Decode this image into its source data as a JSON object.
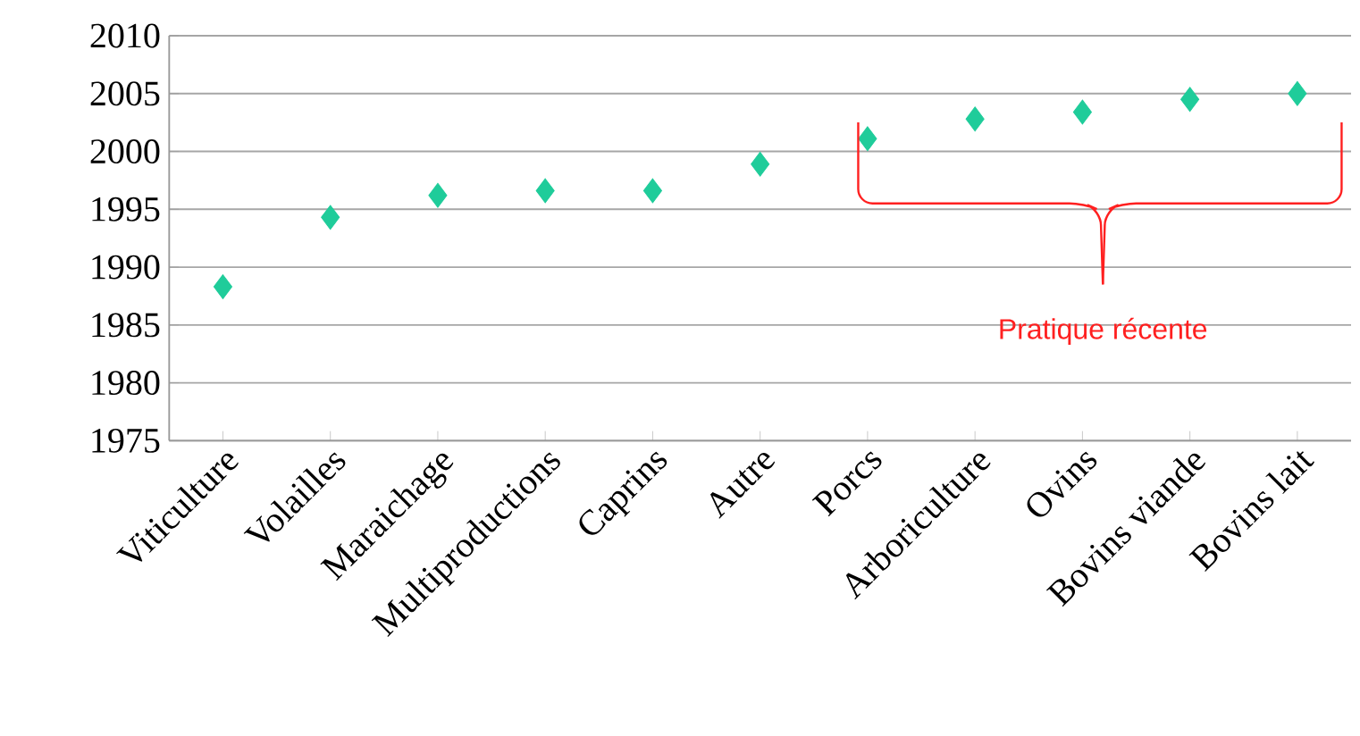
{
  "chart_data": {
    "type": "scatter",
    "categories": [
      "Viticulture",
      "Volailles",
      "Maraichage",
      "Multiproductions",
      "Caprins",
      "Autre",
      "Porcs",
      "Arboriculture",
      "Ovins",
      "Bovins viande",
      "Bovins lait"
    ],
    "values": [
      1988.3,
      1994.3,
      1996.2,
      1996.6,
      1996.6,
      1998.9,
      2001.1,
      2002.8,
      2003.4,
      2004.5,
      2005.0
    ],
    "color": "#1fcc9a",
    "marker": "diamond",
    "grid": "y",
    "ylim": [
      1975,
      2010
    ],
    "yticks": [
      1975,
      1980,
      1985,
      1990,
      1995,
      2000,
      2005,
      2010
    ],
    "annotations": [
      "Pratique récente"
    ]
  }
}
